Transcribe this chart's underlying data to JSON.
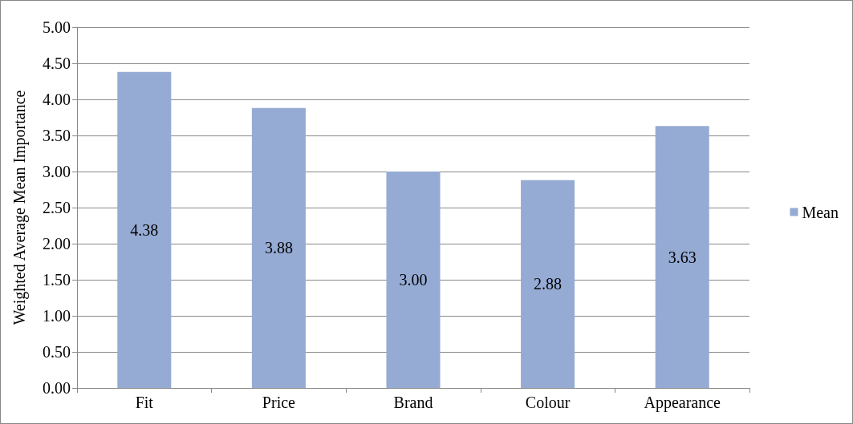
{
  "chart_data": {
    "type": "bar",
    "ylabel": "Weighted Average Mean Importance",
    "categories": [
      "Fit",
      "Price",
      "Brand",
      "Colour",
      "Appearance"
    ],
    "series": [
      {
        "name": "Mean",
        "color": "#95abd4",
        "values": [
          4.38,
          3.88,
          3.0,
          2.88,
          3.63
        ],
        "value_labels": [
          "4.38",
          "3.88",
          "3.00",
          "2.88",
          "3.63"
        ]
      }
    ],
    "ylim": [
      0,
      5
    ],
    "yticks": [
      {
        "value": 0,
        "label": "0.00"
      },
      {
        "value": 0.5,
        "label": "0.50"
      },
      {
        "value": 1,
        "label": "1.00"
      },
      {
        "value": 1.5,
        "label": "1.50"
      },
      {
        "value": 2,
        "label": "2.00"
      },
      {
        "value": 2.5,
        "label": "2.50"
      },
      {
        "value": 3,
        "label": "3.00"
      },
      {
        "value": 3.5,
        "label": "3.50"
      },
      {
        "value": 4,
        "label": "4.00"
      },
      {
        "value": 4.5,
        "label": "4.50"
      },
      {
        "value": 5,
        "label": "5.00"
      }
    ],
    "grid": "y",
    "legend": "right"
  }
}
